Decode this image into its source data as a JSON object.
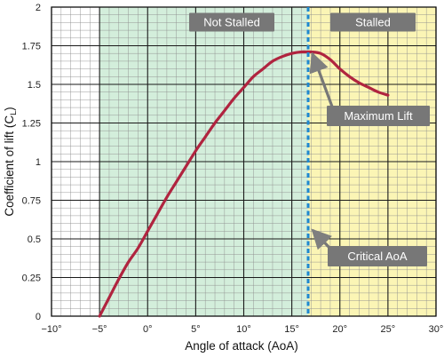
{
  "chart_data": {
    "type": "line",
    "title": "",
    "xlabel": "Angle of attack (AoA)",
    "ylabel": "Coefficient of lift (C",
    "ylabel_subscript": "L",
    "ylabel_suffix": ")",
    "xlim": [
      -10,
      30
    ],
    "ylim": [
      0,
      2
    ],
    "grid": true,
    "minor_grid_x": 1,
    "minor_grid_y": 0.05,
    "x_ticks": [
      -10,
      -5,
      0,
      5,
      10,
      15,
      20,
      25,
      30
    ],
    "x_tick_labels": [
      "−10°",
      "−5°",
      "0°",
      "5°",
      "10°",
      "15°",
      "20°",
      "25°",
      "30°"
    ],
    "y_ticks": [
      0,
      0.25,
      0.5,
      0.75,
      1,
      1.25,
      1.5,
      1.75,
      2
    ],
    "y_tick_labels": [
      "0",
      "0.25",
      "0.5",
      "0.75",
      "1",
      "1.25",
      "1.5",
      "1.75",
      "2"
    ],
    "series": [
      {
        "color": "#b0243f",
        "x": [
          -5,
          -4,
          -3,
          -2,
          -1,
          0,
          1,
          2,
          3,
          4,
          5,
          6,
          7,
          8,
          9,
          10,
          11,
          12,
          13,
          14,
          15,
          16,
          16.5,
          17,
          18,
          19,
          20,
          21,
          22,
          23,
          24,
          25
        ],
        "y": [
          0.0,
          0.12,
          0.24,
          0.35,
          0.44,
          0.55,
          0.66,
          0.77,
          0.87,
          0.97,
          1.07,
          1.16,
          1.25,
          1.33,
          1.41,
          1.48,
          1.55,
          1.6,
          1.65,
          1.68,
          1.7,
          1.71,
          1.71,
          1.71,
          1.7,
          1.66,
          1.6,
          1.55,
          1.51,
          1.48,
          1.45,
          1.43
        ]
      }
    ],
    "regions": [
      {
        "label": "Not Stalled",
        "x_range": [
          -5,
          16.7
        ],
        "color": "#d3eedb"
      },
      {
        "label": "Stalled",
        "x_range": [
          16.7,
          30
        ],
        "color": "#fbf5b5"
      }
    ],
    "region_unshaded_color": "#ffffff",
    "critical_line": {
      "x": 16.7,
      "color": "#1e88d0"
    },
    "annotations": [
      {
        "label": "Maximum Lift",
        "x": 16.7,
        "y": 1.72
      },
      {
        "label": "Critical AoA",
        "x": 16.7,
        "y": 0.58
      }
    ],
    "label_color": "#777777"
  }
}
